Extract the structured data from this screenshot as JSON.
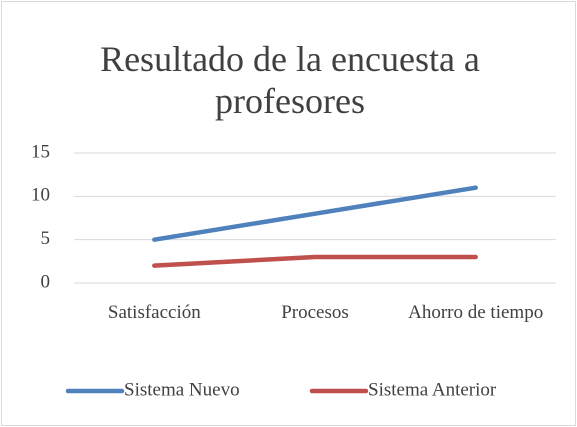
{
  "chart_data": {
    "type": "line",
    "title": "Resultado de la encuesta a profesores",
    "categories": [
      "Satisfacción",
      "Procesos",
      "Ahorro de tiempo"
    ],
    "series": [
      {
        "name": "Sistema Nuevo",
        "color": "#4f81bd",
        "values": [
          5,
          8,
          11
        ]
      },
      {
        "name": "Sistema Anterior",
        "color": "#c0504d",
        "values": [
          2,
          3,
          3
        ]
      }
    ],
    "ylim": [
      0,
      15
    ],
    "yticks": [
      0,
      5,
      10,
      15
    ],
    "grid": true,
    "legend": "bottom"
  }
}
